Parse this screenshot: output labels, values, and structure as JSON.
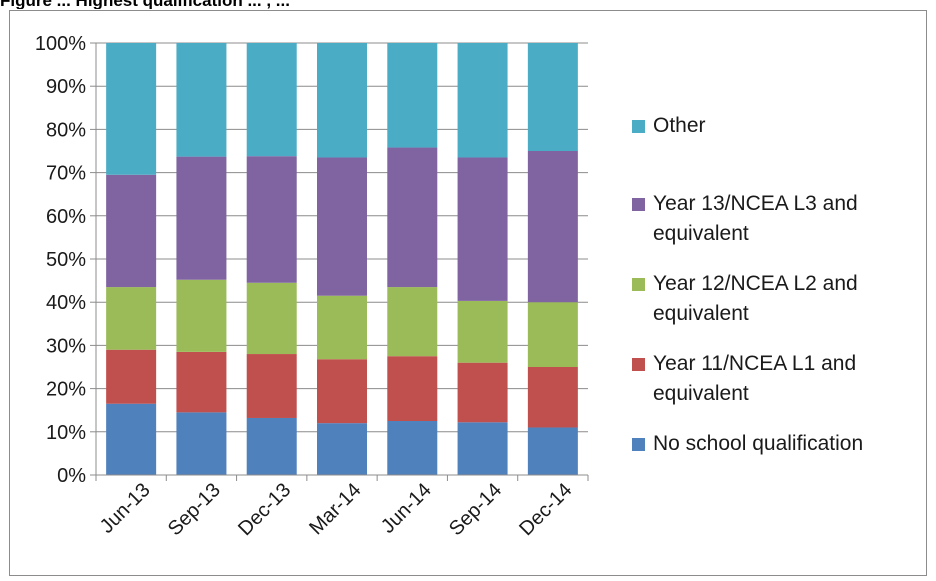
{
  "top_caption": "Figure ... Highest qualification ... , ...",
  "chart_data": {
    "type": "bar",
    "stacked": true,
    "percent": true,
    "title": "",
    "xlabel": "",
    "ylabel": "",
    "ylim": [
      0,
      100
    ],
    "y_ticks": [
      "0%",
      "10%",
      "20%",
      "30%",
      "40%",
      "50%",
      "60%",
      "70%",
      "80%",
      "90%",
      "100%"
    ],
    "grid": true,
    "legend_position": "right",
    "categories": [
      "Jun-13",
      "Sep-13",
      "Dec-13",
      "Mar-14",
      "Jun-14",
      "Sep-14",
      "Dec-14"
    ],
    "series": [
      {
        "name": "No school qualification",
        "color": "#4f81bd",
        "values": [
          16.5,
          14.5,
          13.2,
          12.0,
          12.5,
          12.2,
          11.0
        ]
      },
      {
        "name": "Year 11/NCEA L1 and equivalent",
        "color": "#c0504d",
        "values": [
          12.5,
          14.0,
          14.8,
          14.8,
          15.0,
          13.8,
          14.0
        ]
      },
      {
        "name": "Year 12/NCEA L2 and equivalent",
        "color": "#9bbb59",
        "values": [
          14.5,
          16.7,
          16.5,
          14.7,
          16.0,
          14.3,
          15.0
        ]
      },
      {
        "name": "Year 13/NCEA L3 and equivalent",
        "color": "#8064a2",
        "values": [
          26.0,
          28.5,
          29.3,
          32.0,
          32.3,
          33.2,
          35.0
        ]
      },
      {
        "name": "Other",
        "color": "#4bacc6",
        "values": [
          30.5,
          26.3,
          26.2,
          26.5,
          24.2,
          26.5,
          25.0
        ]
      }
    ]
  },
  "legend_order": [
    "Other",
    "Year 13/NCEA L3 and equivalent",
    "Year 12/NCEA L2 and equivalent",
    "Year 11/NCEA L1 and equivalent",
    "No school qualification"
  ],
  "legend_labels": {
    "Other": "Other",
    "Year 13/NCEA L3 and equivalent": "Year 13/NCEA L3 and\nequivalent",
    "Year 12/NCEA L2 and equivalent": "Year 12/NCEA L2 and\nequivalent",
    "Year 11/NCEA L1 and equivalent": "Year 11/NCEA L1 and\nequivalent",
    "No school qualification": "No school qualification"
  }
}
